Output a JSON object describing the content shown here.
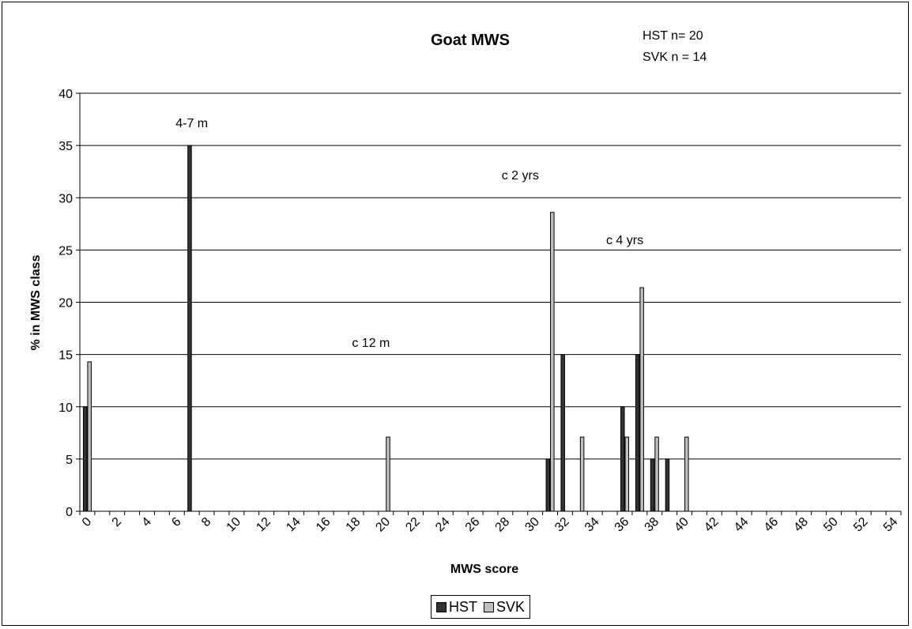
{
  "chart_data": {
    "type": "bar",
    "title": "Goat MWS",
    "notes": [
      "HST n= 20",
      "SVK n = 14"
    ],
    "xlabel": "MWS score",
    "ylabel": "% in MWS class",
    "ylim": [
      0,
      40
    ],
    "yticks": [
      0,
      5,
      10,
      15,
      20,
      25,
      30,
      35,
      40
    ],
    "grid": true,
    "legend_position": "bottom",
    "x_categories": [
      0,
      1,
      2,
      3,
      4,
      5,
      6,
      7,
      8,
      9,
      10,
      11,
      12,
      13,
      14,
      15,
      16,
      17,
      18,
      19,
      20,
      21,
      22,
      23,
      24,
      25,
      26,
      27,
      28,
      29,
      30,
      31,
      32,
      33,
      34,
      35,
      36,
      37,
      38,
      39,
      40,
      41,
      42,
      43,
      44,
      45,
      46,
      47,
      48,
      49,
      50,
      51,
      52,
      53,
      54
    ],
    "x_tick_labels": [
      "0",
      "2",
      "4",
      "6",
      "8",
      "10",
      "12",
      "14",
      "16",
      "18",
      "20",
      "22",
      "24",
      "26",
      "28",
      "30",
      "32",
      "34",
      "36",
      "38",
      "40",
      "42",
      "44",
      "46",
      "48",
      "50",
      "52",
      "54"
    ],
    "series": [
      {
        "name": "HST",
        "color": "#333333",
        "points": [
          {
            "x": 0,
            "y": 10
          },
          {
            "x": 7,
            "y": 35
          },
          {
            "x": 31,
            "y": 5
          },
          {
            "x": 32,
            "y": 15
          },
          {
            "x": 36,
            "y": 10
          },
          {
            "x": 37,
            "y": 15
          },
          {
            "x": 38,
            "y": 5
          },
          {
            "x": 39,
            "y": 5
          }
        ]
      },
      {
        "name": "SVK",
        "color": "#c0c0c0",
        "points": [
          {
            "x": 0,
            "y": 14.3
          },
          {
            "x": 20,
            "y": 7.1
          },
          {
            "x": 31,
            "y": 28.6
          },
          {
            "x": 33,
            "y": 7.1
          },
          {
            "x": 36,
            "y": 7.1
          },
          {
            "x": 37,
            "y": 21.4
          },
          {
            "x": 38,
            "y": 7.1
          },
          {
            "x": 40,
            "y": 7.1
          }
        ]
      }
    ],
    "annotations": [
      {
        "text": "4-7 m",
        "x": 7,
        "y": 37.2
      },
      {
        "text": "c 12 m",
        "x": 19,
        "y": 16.2
      },
      {
        "text": "c 2 yrs",
        "x": 29,
        "y": 32.2
      },
      {
        "text": "c 4 yrs",
        "x": 36,
        "y": 26.0
      }
    ]
  }
}
